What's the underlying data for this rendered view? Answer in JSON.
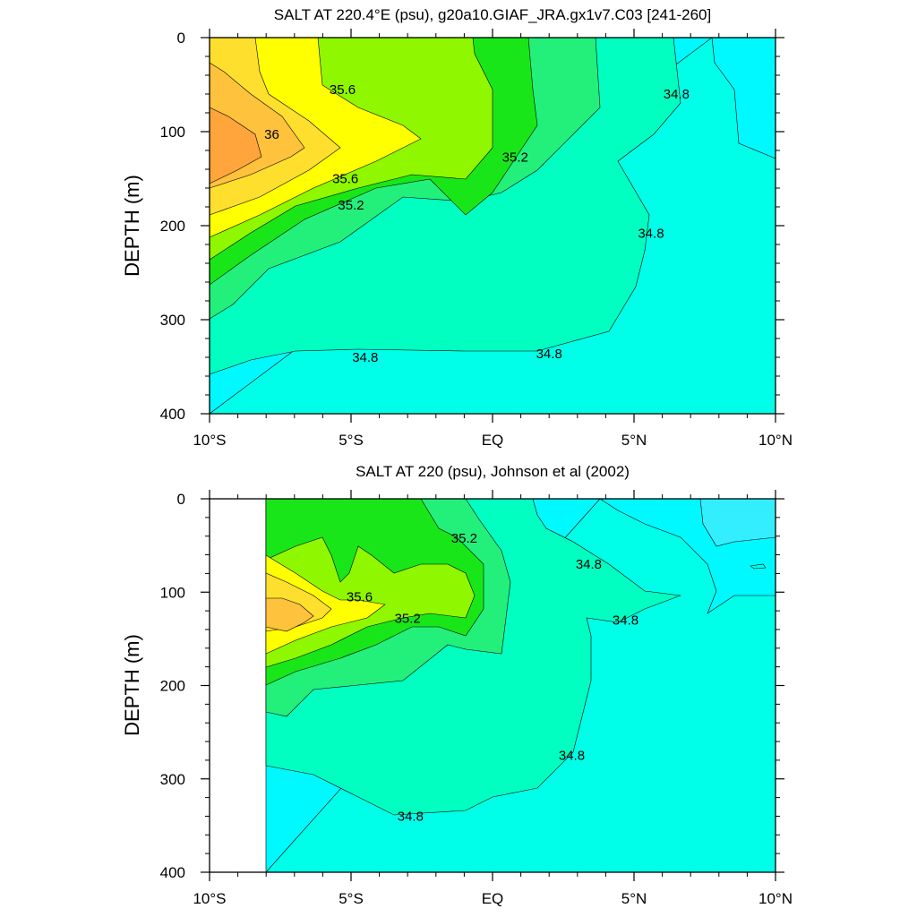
{
  "chart_data": [
    {
      "type": "contour",
      "title": "SALT AT 220.4°E (psu), g20a10.GIAF_JRA.gx1v7.C03 [241-260]",
      "xlabel": "",
      "ylabel": "DEPTH (m)",
      "xlim": [
        -10,
        10
      ],
      "ylim": [
        0,
        400
      ],
      "y_inverted": true,
      "grid": false,
      "x_ticks": [
        {
          "value": -10,
          "label": "10°S"
        },
        {
          "value": -5,
          "label": "5°S"
        },
        {
          "value": 0,
          "label": "EQ"
        },
        {
          "value": 5,
          "label": "5°N"
        },
        {
          "value": 10,
          "label": "10°N"
        }
      ],
      "y_ticks": [
        {
          "value": 0,
          "label": "0"
        },
        {
          "value": 100,
          "label": "100"
        },
        {
          "value": 200,
          "label": "200"
        },
        {
          "value": 300,
          "label": "300"
        },
        {
          "value": 400,
          "label": "400"
        }
      ],
      "contour_levels": [
        34.4,
        34.6,
        34.8,
        35.0,
        35.2,
        35.4,
        35.6,
        35.8,
        36.0,
        36.2
      ],
      "fill_colors": {
        "lt_34_6": "#00F8FF",
        "34_6_34_8": "#00FFE8",
        "34_8_35_0": "#00FFC0",
        "35_0_35_2": "#22F07A",
        "35_2_35_4": "#19E619",
        "35_4_35_6": "#8FF700",
        "35_6_35_8": "#FFFF00",
        "35_8_36_0": "#FFDF2E",
        "36_0_36_2": "#FFC23C",
        "gt_36_2": "#FFA53C"
      },
      "contour_labels": [
        {
          "text": "35.6",
          "x": -5.3,
          "y": 55
        },
        {
          "text": "36",
          "x": -7.8,
          "y": 103
        },
        {
          "text": "35.6",
          "x": -5.2,
          "y": 150
        },
        {
          "text": "35.2",
          "x": -5.0,
          "y": 178
        },
        {
          "text": "35.2",
          "x": 0.8,
          "y": 127
        },
        {
          "text": "34.8",
          "x": 6.5,
          "y": 60
        },
        {
          "text": "34.8",
          "x": 5.6,
          "y": 208
        },
        {
          "text": "34.8",
          "x": -4.5,
          "y": 340
        },
        {
          "text": "34.8",
          "x": 2.0,
          "y": 336
        }
      ]
    },
    {
      "type": "contour",
      "title": "SALT AT 220 (psu), Johnson et al (2002)",
      "xlabel": "",
      "ylabel": "DEPTH (m)",
      "xlim": [
        -10,
        10
      ],
      "ylim": [
        0,
        400
      ],
      "y_inverted": true,
      "grid": false,
      "data_xrange": [
        -8,
        10
      ],
      "x_ticks": [
        {
          "value": -10,
          "label": "10°S"
        },
        {
          "value": -5,
          "label": "5°S"
        },
        {
          "value": 0,
          "label": "EQ"
        },
        {
          "value": 5,
          "label": "5°N"
        },
        {
          "value": 10,
          "label": "10°N"
        }
      ],
      "y_ticks": [
        {
          "value": 0,
          "label": "0"
        },
        {
          "value": 100,
          "label": "100"
        },
        {
          "value": 200,
          "label": "200"
        },
        {
          "value": 300,
          "label": "300"
        },
        {
          "value": 400,
          "label": "400"
        }
      ],
      "contour_levels": [
        34.4,
        34.6,
        34.8,
        35.0,
        35.2,
        35.4,
        35.6,
        35.8,
        36.0
      ],
      "fill_colors": {
        "lt_34_4": "#00DFFF",
        "34_4_34_6": "#33EEFF",
        "34_6_34_8": "#00FFE8",
        "34_8_35_0": "#00FFC0",
        "35_0_35_2": "#22F07A",
        "35_2_35_4": "#19E619",
        "35_4_35_6": "#8FF700",
        "35_6_35_8": "#FFFF00",
        "35_8_36_0": "#FFDF2E",
        "gt_36_0": "#FFC23C"
      },
      "contour_labels": [
        {
          "text": "35.2",
          "x": -1.0,
          "y": 42
        },
        {
          "text": "34.8",
          "x": 3.4,
          "y": 70
        },
        {
          "text": "35.6",
          "x": -4.7,
          "y": 105
        },
        {
          "text": "35.2",
          "x": -3.0,
          "y": 128
        },
        {
          "text": "34.8",
          "x": 4.7,
          "y": 130
        },
        {
          "text": "34.8",
          "x": 2.8,
          "y": 275
        },
        {
          "text": "34.8",
          "x": -2.9,
          "y": 340
        }
      ]
    }
  ]
}
